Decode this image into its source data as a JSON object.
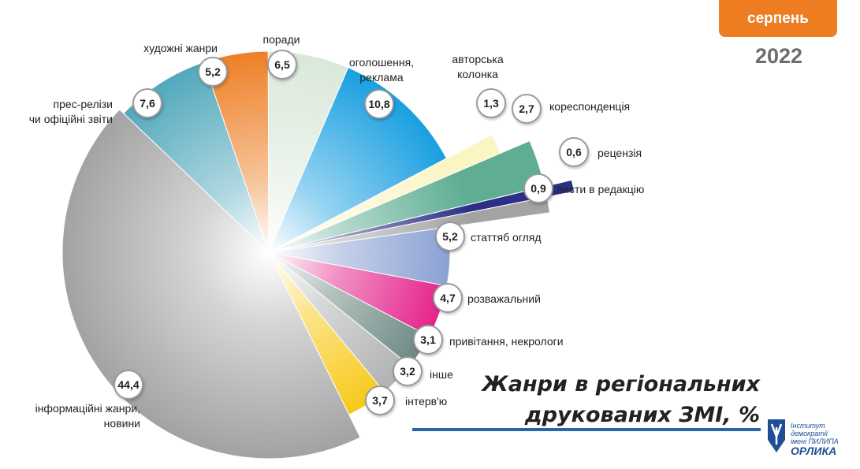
{
  "header": {
    "month": "серпень",
    "year": "2022"
  },
  "chart_data": {
    "type": "pie",
    "title_lines": [
      "Жанри в регіональних",
      "друкованих ЗМІ, %"
    ],
    "slices": [
      {
        "label": "статтяб огляд",
        "value": 5.2,
        "color": "#7f97cf"
      },
      {
        "label": "розважальний",
        "value": 4.7,
        "color": "#e20b7e"
      },
      {
        "label": "привітання, некрологи",
        "value": 3.1,
        "color": "#5d7c75"
      },
      {
        "label": "інше",
        "value": 3.2,
        "color": "#a7a9ab"
      },
      {
        "label": "інтерв'ю",
        "value": 3.7,
        "color": "#f7c300"
      },
      {
        "label": "інформаційні жанри, новини",
        "value": 44.4,
        "color": "#a3a3a3"
      },
      {
        "label": "прес-релізи чи офіційні звіти",
        "value": 7.6,
        "color": "#4fa7bb"
      },
      {
        "label": "художні жанри",
        "value": 5.2,
        "color": "#ee7d22"
      },
      {
        "label": "поради",
        "value": 6.5,
        "color": "#d9e8d9"
      },
      {
        "label": "оголошення, реклама",
        "value": 10.8,
        "color": "#159ee0"
      },
      {
        "label": "авторська колонка",
        "value": 1.3,
        "color": "#fbf5c2"
      },
      {
        "label": "кореспонденція",
        "value": 2.7,
        "color": "#5fae94"
      },
      {
        "label": "рецензія",
        "value": 0.6,
        "color": "#2c2f86"
      },
      {
        "label": "листи в редакцію",
        "value": 0.9,
        "color": "#a3a3a3"
      }
    ],
    "value_labels": [
      "5,2",
      "4,7",
      "3,1",
      "3,2",
      "3,7",
      "44,4",
      "7,6",
      "5,2",
      "6,5",
      "10,8",
      "1,3",
      "2,7",
      "0,6",
      "0,9"
    ],
    "category_labels": [
      [
        "статтяб огляд"
      ],
      [
        "розважальний"
      ],
      [
        "привітання, некрологи"
      ],
      [
        "інше"
      ],
      [
        "інтерв'ю"
      ],
      [
        "інформаційні жанри,",
        "новини"
      ],
      [
        "прес-релізи",
        "чи офіційні звіти"
      ],
      [
        "художні жанри"
      ],
      [
        "поради"
      ],
      [
        "оголошення,",
        "реклама"
      ],
      [
        "авторська",
        "колонка"
      ],
      [
        "кореспонденція"
      ],
      [
        "рецензія"
      ],
      [
        "листи в редакцію"
      ]
    ]
  },
  "logo": {
    "line1": "Інститут демократії",
    "line2": "імені ПИЛИПА",
    "line3": "ОРЛИКА"
  }
}
